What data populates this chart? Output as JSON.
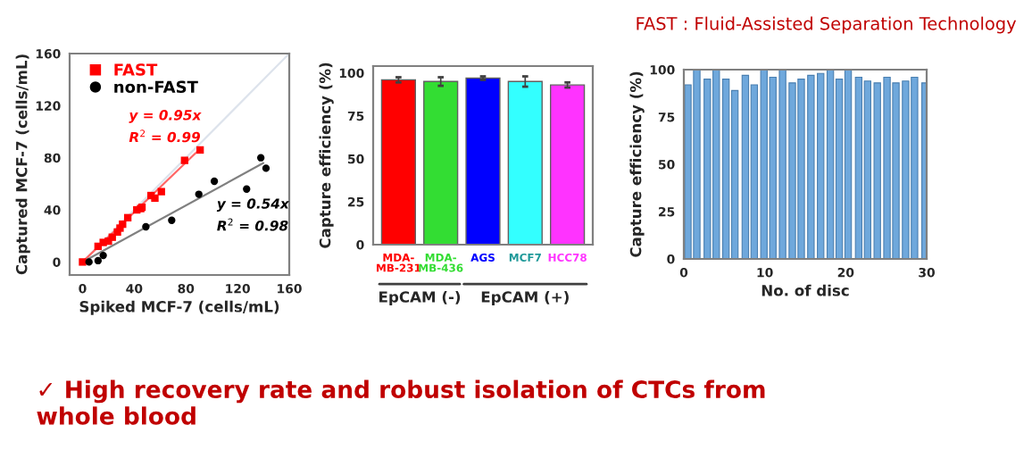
{
  "chart_data": [
    {
      "type": "scatter",
      "xlabel": "Spiked MCF-7 (cells/mL)",
      "ylabel": "Captured MCF-7 (cells/mL)",
      "xlim": [
        -10,
        160
      ],
      "ylim": [
        -10,
        160
      ],
      "xticks": [
        0,
        40,
        80,
        120,
        160
      ],
      "yticks": [
        0,
        40,
        80,
        120,
        160
      ],
      "grid": false,
      "legend": "top left",
      "series": [
        {
          "type": "line",
          "color": "#dde3ec",
          "x": [
            0,
            160
          ],
          "values": [
            0,
            160
          ]
        },
        {
          "type": "line",
          "color": "#ff6666",
          "x": [
            0,
            90
          ],
          "values": [
            0,
            86
          ]
        },
        {
          "type": "line",
          "color": "#808080",
          "x": [
            0,
            140
          ],
          "values": [
            0,
            76
          ]
        },
        {
          "name": "FAST",
          "color": "#ff0000",
          "marker": "square",
          "x": [
            0,
            12,
            16,
            20,
            23,
            27,
            29,
            31,
            35,
            42,
            45,
            46,
            53,
            56,
            61,
            79,
            91
          ],
          "values": [
            0,
            12,
            15,
            16,
            19,
            23,
            26,
            29,
            34,
            40,
            41,
            42,
            51,
            49,
            54,
            78,
            86
          ]
        },
        {
          "name": "non-FAST",
          "color": "#000000",
          "marker": "circle",
          "x": [
            5,
            12,
            16,
            49,
            69,
            90,
            102,
            127,
            138,
            142
          ],
          "values": [
            0,
            1,
            5,
            27,
            32,
            52,
            62,
            56,
            80,
            72
          ]
        }
      ],
      "annotations": [
        "y = 0.95x",
        "R$^{2}$ = 0.99",
        "y = 0.54x",
        "R$^{2}$ = 0.98",
        "FAST : Fluid-Assisted Separation Technology",
        "✓ High recovery rate and robust isolation of CTCs from\nwhole blood"
      ]
    },
    {
      "type": "bar",
      "ylabel": "Capture efficiency (%)",
      "categories": [
        "MDA-\nMB-231",
        "MDA-\nMB-436",
        "AGS",
        "MCF7",
        "HCC78"
      ],
      "values": [
        96,
        95,
        97,
        95,
        93
      ],
      "errors": [
        1.5,
        2.5,
        1,
        3,
        1.5
      ],
      "colors": [
        "#ff0000",
        "#33dd33",
        "#0000ff",
        "#33ffff",
        "#ff33ff"
      ],
      "ylim": [
        0,
        104
      ],
      "yticks": [
        0,
        25,
        50,
        75,
        100
      ],
      "grid": false,
      "annotations": [
        "EpCAM (-)",
        "EpCAM (+)"
      ]
    },
    {
      "type": "bar",
      "xlabel": "No. of disc",
      "ylabel": "Capture efficiency (%)",
      "color": "#6fa8dc",
      "x": [
        0.5,
        1.6,
        2.9,
        4.0,
        5.2,
        6.3,
        7.6,
        8.7,
        9.9,
        11.0,
        12.2,
        13.4,
        14.5,
        15.7,
        16.9,
        18.1,
        19.2,
        20.3,
        21.6,
        22.7,
        23.9,
        25.1,
        26.2,
        27.4,
        28.5,
        29.8
      ],
      "values": [
        92,
        100,
        95,
        100,
        95,
        89,
        97,
        92,
        100,
        96,
        100,
        93,
        95,
        97,
        98,
        100,
        95,
        100,
        96,
        94,
        93,
        96,
        93,
        94,
        96,
        93
      ],
      "xlim": [
        0,
        30
      ],
      "ylim": [
        0,
        100
      ],
      "xticks": [
        0,
        10,
        20,
        30
      ],
      "yticks": [
        0,
        25,
        50,
        75,
        100
      ],
      "grid": false
    }
  ]
}
